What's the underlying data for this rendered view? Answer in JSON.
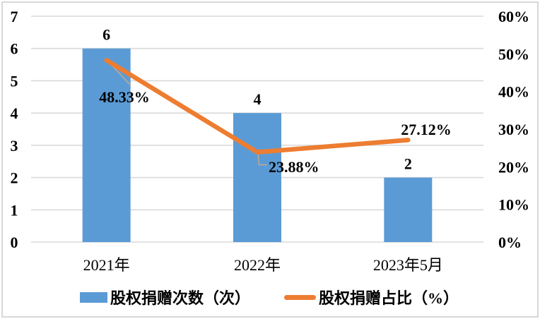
{
  "chart_data": {
    "type": "bar",
    "combo_with_line": true,
    "title": "",
    "categories": [
      "2021年",
      "2022年",
      "2023年5月"
    ],
    "series": [
      {
        "name": "股权捐赠次数（次）",
        "type": "bar",
        "axis": "left",
        "values": [
          6,
          4,
          2
        ],
        "labels": [
          "6",
          "4",
          "2"
        ],
        "color": "#5B9BD5"
      },
      {
        "name": "股权捐赠占比（%）",
        "type": "line",
        "axis": "right",
        "values": [
          48.33,
          23.88,
          27.12
        ],
        "labels": [
          "48.33%",
          "23.88%",
          "27.12%"
        ],
        "color": "#ED7D31"
      }
    ],
    "left_axis": {
      "min": 0,
      "max": 7,
      "tick_step": 1,
      "ticks": [
        "0",
        "1",
        "2",
        "3",
        "4",
        "5",
        "6",
        "7"
      ]
    },
    "right_axis": {
      "min": 0,
      "max": 60,
      "tick_step": 10,
      "ticks": [
        "0%",
        "10%",
        "20%",
        "30%",
        "40%",
        "50%",
        "60%"
      ]
    },
    "grid": true,
    "legend_position": "bottom"
  },
  "colors": {
    "bar": "#5B9BD5",
    "line": "#ED7D31",
    "gridline": "#D9D9D9",
    "leader_line": "#B3A89C",
    "border": "#D7D7D7",
    "text": "#000000",
    "background": "#FFFFFF"
  }
}
